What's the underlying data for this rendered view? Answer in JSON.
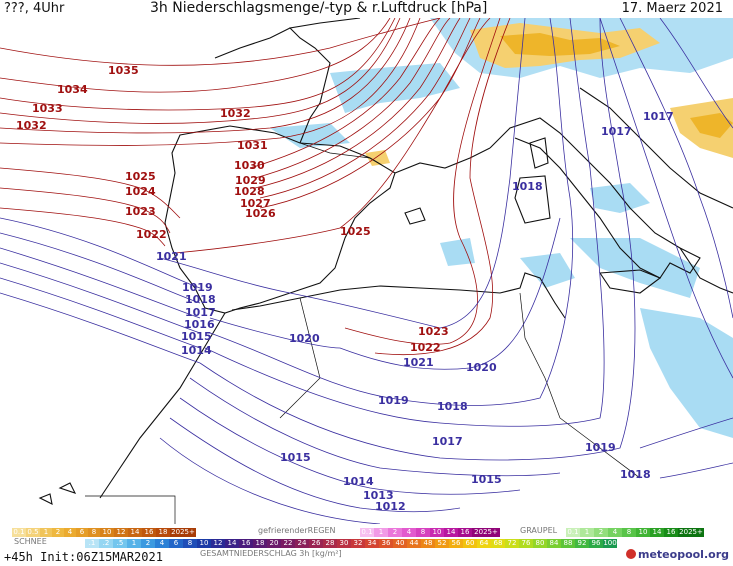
{
  "header": {
    "left": "???, 4Uhr",
    "title": "3h Niederschlagsmenge/-typ & r.Luftdruck [hPa]",
    "date": "17. Maerz 2021"
  },
  "footer": {
    "run": "+45h  Init:06Z15MAR2021",
    "logo": "meteopool.org"
  },
  "legend": {
    "schnee_title": "SCHNEE",
    "regen_title": "gefrierenderREGEN",
    "graupel_title": "GRAUPEL",
    "gesamt_title": "GESAMTNIEDERSCHLAG 3h [kg/m²]",
    "schnee_values": [
      "0.1",
      "0.5",
      "1",
      "2",
      "4",
      "6",
      "8",
      "10",
      "12",
      "14",
      "16",
      "18",
      "2025+"
    ],
    "regen_values": [
      "0.1",
      "1",
      "2",
      "4",
      "8",
      "10",
      "14",
      "16",
      "2025+"
    ],
    "graupel_values": [
      "0.1",
      "1",
      "2",
      "4",
      "8",
      "10",
      "14",
      "16",
      "2025+"
    ],
    "gesamt_values": [
      ".1",
      ".2",
      ".5",
      "1",
      "2",
      "4",
      "6",
      "8",
      "10",
      "12",
      "14",
      "16",
      "18",
      "20",
      "22",
      "24",
      "26",
      "28",
      "30",
      "32",
      "34",
      "36",
      "40",
      "44",
      "48",
      "52",
      "56",
      "60",
      "64",
      "68",
      "72",
      "76",
      "80",
      "84",
      "88",
      "92",
      "96",
      "100"
    ]
  },
  "isobar_labels": [
    {
      "text": "1035",
      "kind": "high"
    },
    {
      "text": "1034",
      "kind": "high"
    },
    {
      "text": "1033",
      "kind": "high"
    },
    {
      "text": "1032",
      "kind": "high"
    },
    {
      "text": "1032",
      "kind": "high"
    },
    {
      "text": "1031",
      "kind": "high"
    },
    {
      "text": "1030",
      "kind": "high"
    },
    {
      "text": "1029",
      "kind": "high"
    },
    {
      "text": "1028",
      "kind": "high"
    },
    {
      "text": "1027",
      "kind": "high"
    },
    {
      "text": "1026",
      "kind": "high"
    },
    {
      "text": "1025",
      "kind": "high"
    },
    {
      "text": "1024",
      "kind": "high"
    },
    {
      "text": "1023",
      "kind": "high"
    },
    {
      "text": "1022",
      "kind": "high"
    },
    {
      "text": "1025",
      "kind": "high"
    },
    {
      "text": "1023",
      "kind": "high"
    },
    {
      "text": "1022",
      "kind": "high"
    },
    {
      "text": "1021",
      "kind": "low"
    },
    {
      "text": "1019",
      "kind": "low"
    },
    {
      "text": "1018",
      "kind": "low"
    },
    {
      "text": "1017",
      "kind": "low"
    },
    {
      "text": "1016",
      "kind": "low"
    },
    {
      "text": "1015",
      "kind": "low"
    },
    {
      "text": "1014",
      "kind": "low"
    },
    {
      "text": "1020",
      "kind": "low"
    },
    {
      "text": "1021",
      "kind": "low"
    },
    {
      "text": "1020",
      "kind": "low"
    },
    {
      "text": "1019",
      "kind": "low"
    },
    {
      "text": "1018",
      "kind": "low"
    },
    {
      "text": "1017",
      "kind": "low"
    },
    {
      "text": "1015",
      "kind": "low"
    },
    {
      "text": "1014",
      "kind": "low"
    },
    {
      "text": "1013",
      "kind": "low"
    },
    {
      "text": "1012",
      "kind": "low"
    },
    {
      "text": "1015",
      "kind": "low"
    },
    {
      "text": "1019",
      "kind": "low"
    },
    {
      "text": "1018",
      "kind": "low"
    },
    {
      "text": "1017",
      "kind": "low"
    },
    {
      "text": "1017",
      "kind": "low"
    },
    {
      "text": "1018",
      "kind": "low"
    }
  ],
  "colors": {
    "high_isobar": "#a01010",
    "low_isobar": "#3a2fa0",
    "coast": "#111111",
    "rain_light": "#9fd3ee",
    "snow_light": "#f5d070",
    "snow_mid": "#eeb52a"
  }
}
